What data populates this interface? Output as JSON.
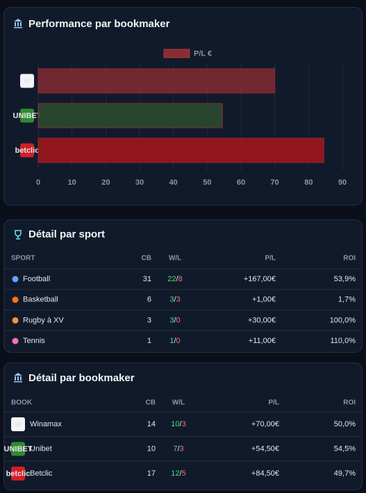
{
  "chart_data": {
    "type": "hbar",
    "title": "Performance par bookmaker",
    "categories": [
      "W",
      "UNIBET",
      "betclic"
    ],
    "series": [
      {
        "name": "P/L €",
        "color": "#8b2c33",
        "values": [
          70,
          54.5,
          84.5
        ]
      }
    ],
    "bar_colors": [
      "#7d2a31",
      "#2b4a2f",
      "#a0161c"
    ],
    "xlim": [
      0,
      90
    ],
    "xticks": [
      0,
      10,
      20,
      30,
      40,
      50,
      60,
      70,
      80,
      90
    ],
    "grid": true,
    "legend": "top"
  },
  "sport_table": {
    "title": "Détail par sport",
    "headers": [
      "SPORT",
      "CB",
      "W/L",
      "P/L",
      "ROI"
    ],
    "rows": [
      {
        "name": "Football",
        "cb": 31,
        "wins": 22,
        "sep": "/",
        "losses": 8,
        "pl": "+167,00€",
        "roi": "53,9%"
      },
      {
        "name": "Basketball",
        "cb": 6,
        "wins": 3,
        "sep": "/",
        "losses": 3,
        "pl": "+1,00€",
        "roi": "1,7%"
      },
      {
        "name": "Rugby à XV",
        "cb": 3,
        "wins": 3,
        "sep": "/",
        "losses": 0,
        "pl": "+30,00€",
        "roi": "100,0%"
      },
      {
        "name": "Tennis",
        "cb": 1,
        "wins": 1,
        "sep": "/",
        "losses": 0,
        "pl": "+11,00€",
        "roi": "110,0%"
      }
    ]
  },
  "book_table": {
    "title": "Détail par bookmaker",
    "headers": [
      "BOOK",
      "CB",
      "W/L",
      "P/L",
      "ROI"
    ],
    "rows": [
      {
        "name": "Winamax",
        "cb": 14,
        "wins": 10,
        "sep": "/",
        "losses": 3,
        "pl": "+70,00€",
        "roi": "50,0%"
      },
      {
        "name": "Unibet",
        "cb": 10,
        "wins": 7,
        "sep": "/",
        "losses": 3,
        "pl": "+54,50€",
        "roi": "54,5%"
      },
      {
        "name": "Betclic",
        "cb": 17,
        "wins": 12,
        "sep": "/",
        "losses": 5,
        "pl": "+84,50€",
        "roi": "49,7%"
      }
    ]
  }
}
